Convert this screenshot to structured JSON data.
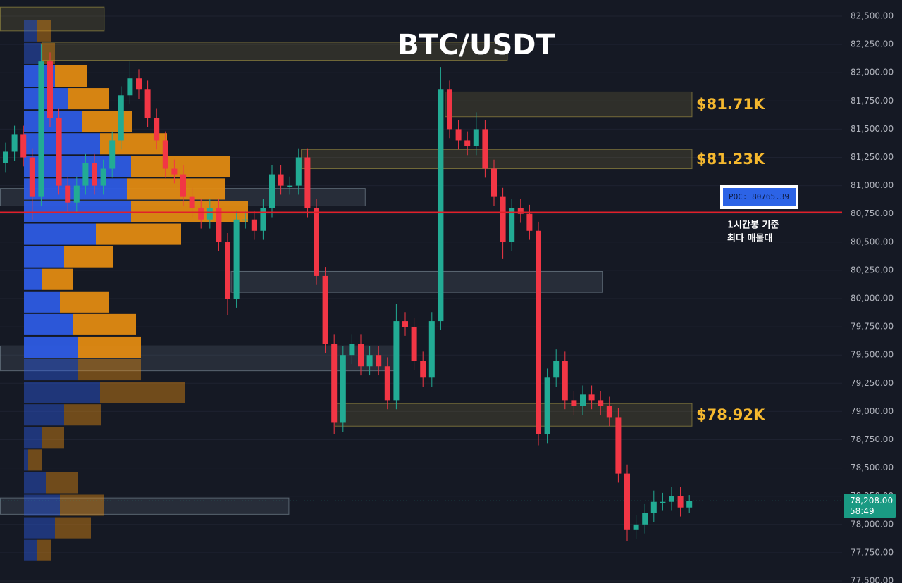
{
  "chart_data": {
    "type": "candlestick",
    "title": "BTC/USDT",
    "open": [
      81200,
      81300,
      81450,
      81250,
      80900,
      82100,
      81600,
      81000,
      80850,
      81000,
      81200,
      81000,
      81150,
      81400,
      81800,
      81950,
      81850,
      81600,
      81400,
      81150,
      81100,
      80900,
      80800,
      80700,
      80800,
      80500,
      80000,
      80700,
      80700,
      80600,
      80800,
      81100,
      81000,
      81000,
      81250,
      80800,
      80200,
      79600,
      78900,
      79500,
      79600,
      79400,
      79500,
      79400,
      79100,
      79800,
      79750,
      79450,
      79300,
      79800,
      81850,
      81500,
      81400,
      81350,
      81500,
      81150,
      80900,
      80500,
      80800,
      80750,
      80600,
      78800,
      79300,
      79450,
      79100,
      79050,
      79150,
      79100,
      79050,
      78950,
      78450,
      77950,
      78000,
      78100,
      78200,
      78200,
      78250,
      78150
    ],
    "high": [
      81380,
      81530,
      81530,
      81330,
      82250,
      82180,
      81680,
      81080,
      81080,
      81280,
      81280,
      81230,
      81480,
      81880,
      82100,
      82030,
      81930,
      81680,
      81480,
      81230,
      81180,
      80980,
      80880,
      80880,
      80880,
      80580,
      80780,
      80780,
      80780,
      80880,
      81180,
      81180,
      81080,
      81330,
      81330,
      80880,
      80280,
      79680,
      79580,
      79680,
      79680,
      79580,
      79580,
      79480,
      79950,
      79880,
      79830,
      79530,
      79880,
      82050,
      81930,
      81580,
      81480,
      81650,
      81580,
      81230,
      80980,
      80880,
      80880,
      80830,
      80680,
      79380,
      79550,
      79530,
      79180,
      79230,
      79230,
      79180,
      79130,
      79030,
      78530,
      78080,
      78180,
      78300,
      78280,
      78330,
      78330,
      78260
    ],
    "low": [
      81120,
      81220,
      81170,
      80700,
      80820,
      81520,
      80920,
      80770,
      80770,
      80920,
      80920,
      80920,
      81070,
      81320,
      81720,
      81770,
      81520,
      81320,
      81070,
      81020,
      80820,
      80720,
      80620,
      80620,
      80420,
      79850,
      79920,
      80620,
      80520,
      80520,
      80720,
      80920,
      80920,
      80920,
      80720,
      80120,
      79520,
      78800,
      78820,
      79420,
      79320,
      79320,
      79320,
      79020,
      79020,
      79670,
      79370,
      79220,
      79220,
      79720,
      81420,
      81320,
      81270,
      81270,
      81070,
      80820,
      80350,
      80420,
      80670,
      80520,
      78700,
      78720,
      79220,
      79020,
      78970,
      78970,
      79020,
      78970,
      78870,
      78370,
      77850,
      77870,
      77920,
      78020,
      78120,
      78120,
      78070,
      78100
    ],
    "close": [
      81300,
      81450,
      81250,
      80900,
      82100,
      81600,
      81000,
      80850,
      81000,
      81200,
      81000,
      81150,
      81400,
      81800,
      81950,
      81850,
      81600,
      81400,
      81150,
      81100,
      80900,
      80800,
      80700,
      80800,
      80500,
      80000,
      80700,
      80700,
      80600,
      80800,
      81100,
      81000,
      81000,
      81250,
      80800,
      80200,
      79600,
      78900,
      79500,
      79600,
      79400,
      79500,
      79400,
      79100,
      79800,
      79750,
      79450,
      79300,
      79800,
      81850,
      81500,
      81400,
      81350,
      81500,
      81150,
      80900,
      80500,
      80800,
      80750,
      80600,
      78800,
      79300,
      79450,
      79100,
      79050,
      79150,
      79100,
      79050,
      78950,
      78450,
      77950,
      78000,
      78100,
      78200,
      78200,
      78250,
      78150,
      78208
    ],
    "up_color": "#22ab94",
    "down_color": "#f23645",
    "ylim": [
      77500,
      82500
    ],
    "yticks": [
      {
        "value": 77500,
        "label": "77,500.00"
      },
      {
        "value": 77750,
        "label": "77,750.00"
      },
      {
        "value": 78000,
        "label": "78,000.00"
      },
      {
        "value": 78250,
        "label": "78,250.00"
      },
      {
        "value": 78500,
        "label": "78,500.00"
      },
      {
        "value": 78750,
        "label": "78,750.00"
      },
      {
        "value": 79000,
        "label": "79,000.00"
      },
      {
        "value": 79250,
        "label": "79,250.00"
      },
      {
        "value": 79500,
        "label": "79,500.00"
      },
      {
        "value": 79750,
        "label": "79,750.00"
      },
      {
        "value": 80000,
        "label": "80,000.00"
      },
      {
        "value": 80250,
        "label": "80,250.00"
      },
      {
        "value": 80500,
        "label": "80,500.00"
      },
      {
        "value": 80750,
        "label": "80,750.00"
      },
      {
        "value": 81000,
        "label": "81,000.00"
      },
      {
        "value": 81250,
        "label": "81,250.00"
      },
      {
        "value": 81500,
        "label": "81,500.00"
      },
      {
        "value": 81750,
        "label": "81,750.00"
      },
      {
        "value": 82000,
        "label": "82,000.00"
      },
      {
        "value": 82250,
        "label": "82,250.00"
      },
      {
        "value": 82500,
        "label": "82,500.00"
      }
    ],
    "volume_profile": {
      "levels": [
        82370,
        82170,
        81970,
        81770,
        81570,
        81370,
        81170,
        80970,
        80770,
        80570,
        80370,
        80170,
        79970,
        79770,
        79570,
        79370,
        79170,
        78970,
        78770,
        78570,
        78370,
        78170,
        77970,
        77770
      ],
      "buy": [
        18,
        24,
        44,
        63,
        83,
        108,
        152,
        146,
        152,
        102,
        57,
        25,
        51,
        70,
        76,
        76,
        108,
        57,
        25,
        6,
        31,
        51,
        44,
        18
      ],
      "sell": [
        20,
        20,
        45,
        58,
        70,
        95,
        141,
        140,
        166,
        121,
        70,
        45,
        70,
        89,
        90,
        90,
        121,
        52,
        32,
        19,
        45,
        63,
        51,
        20
      ],
      "buy_color": "#2d5be3",
      "sell_color": "#e08a12",
      "value_area": [
        79460,
        82070
      ]
    },
    "zones": [
      {
        "top": 82580,
        "bottom": 82370,
        "start": -0.6,
        "end": 11.1,
        "color": "#b8a848"
      },
      {
        "top": 82270,
        "bottom": 82110,
        "start": 4.1,
        "end": 56.5,
        "color": "#b8a848"
      },
      {
        "top": 81830,
        "bottom": 81610,
        "start": 49.5,
        "end": 77.3,
        "color": "#b8a848",
        "label": "$81.71K"
      },
      {
        "top": 81320,
        "bottom": 81150,
        "start": 33.3,
        "end": 77.3,
        "color": "#b8a848",
        "label": "$81.23K"
      },
      {
        "top": 80975,
        "bottom": 80820,
        "start": -0.6,
        "end": 40.5,
        "color": "#8a9aa8"
      },
      {
        "top": 80240,
        "bottom": 80055,
        "start": 25.4,
        "end": 67.2,
        "color": "#8a9aa8"
      },
      {
        "top": 79580,
        "bottom": 79360,
        "start": -0.6,
        "end": 44,
        "color": "#8a9aa8"
      },
      {
        "top": 79070,
        "bottom": 78870,
        "start": 37.1,
        "end": 77.3,
        "color": "#b8a848",
        "label": "$78.92K"
      },
      {
        "top": 78235,
        "bottom": 78090,
        "start": -0.6,
        "end": 31.9,
        "color": "#8a9aa8"
      }
    ],
    "poc": {
      "value": 80765.39,
      "label": "POC: 80765.39"
    },
    "poc_note": [
      "1시간봉 기준",
      "최다 매물대"
    ],
    "last_price": {
      "value": 78208,
      "label": "78,208.00"
    },
    "countdown": "58:49"
  }
}
